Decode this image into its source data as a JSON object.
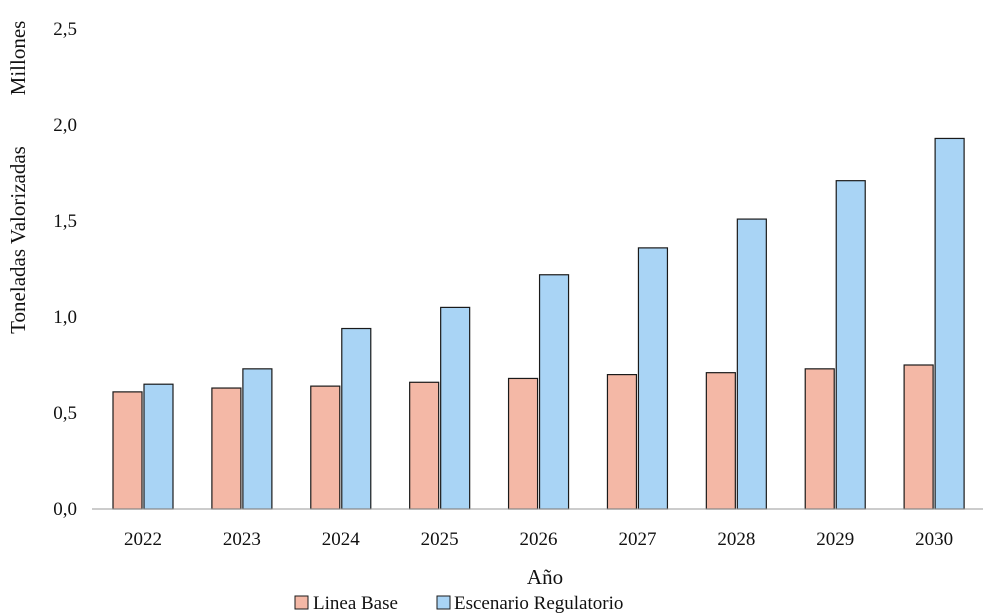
{
  "chart_data": {
    "type": "bar",
    "title": "",
    "xlabel": "Año",
    "ylabel": "Toneladas Valorizadas",
    "yunit": "Millones",
    "categories": [
      "2022",
      "2023",
      "2024",
      "2025",
      "2026",
      "2027",
      "2028",
      "2029",
      "2030"
    ],
    "ylim": [
      0,
      2.5
    ],
    "yticks": [
      "0,0",
      "0,5",
      "1,0",
      "1,5",
      "2,0",
      "2,5"
    ],
    "grid": false,
    "legend_position": "bottom",
    "series": [
      {
        "name": "Linea Base",
        "color": "#f4b8a6",
        "values": [
          0.61,
          0.63,
          0.64,
          0.66,
          0.68,
          0.7,
          0.71,
          0.73,
          0.75
        ]
      },
      {
        "name": "Escenario Regulatorio",
        "color": "#a9d4f5",
        "values": [
          0.65,
          0.73,
          0.94,
          1.05,
          1.22,
          1.36,
          1.51,
          1.71,
          1.93
        ]
      }
    ]
  }
}
